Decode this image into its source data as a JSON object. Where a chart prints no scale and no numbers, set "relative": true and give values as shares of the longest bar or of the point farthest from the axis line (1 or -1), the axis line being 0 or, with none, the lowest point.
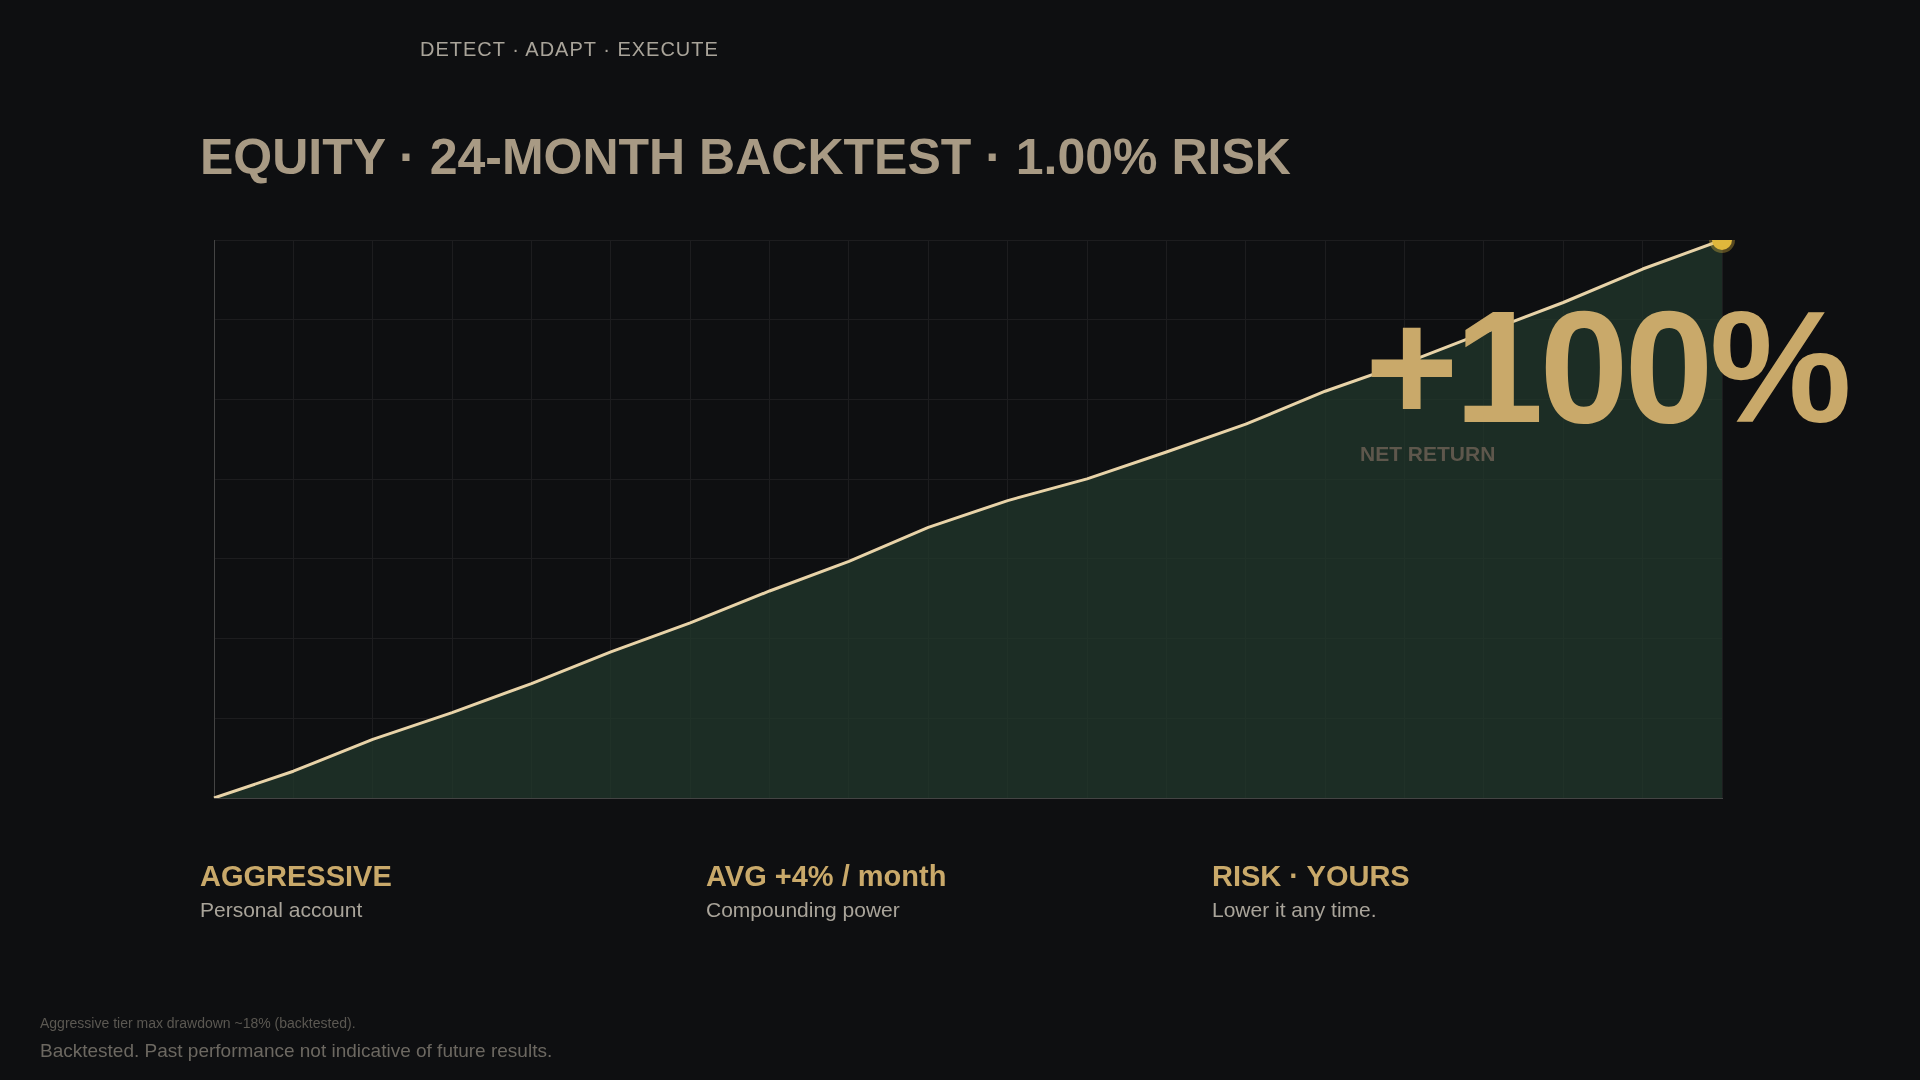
{
  "chart_data": {
    "type": "area",
    "title": "EQUITY · 24-MONTH BACKTEST · 1.00% RISK",
    "relative": true,
    "grid": true,
    "color": "#e8d3a8",
    "categories": [
      null,
      null,
      null,
      null,
      null,
      null,
      null,
      null,
      null,
      null,
      null,
      null,
      null,
      null,
      null,
      null,
      null,
      null,
      null,
      null
    ],
    "values": [
      0,
      0.048,
      0.105,
      0.153,
      0.205,
      0.262,
      0.314,
      0.371,
      0.424,
      0.485,
      0.533,
      0.572,
      0.62,
      0.67,
      0.729,
      0.779,
      0.834,
      0.888,
      0.948,
      1
    ],
    "annotations": [
      "DETECT · ADAPT · EXECUTE",
      "+100%",
      "NET RETURN",
      "AGGRESSIVE",
      "Personal account",
      "AVG  +4% / month",
      "Compounding power",
      "RISK · YOURS",
      "Lower it any time.",
      "Aggressive tier max drawdown ~18% (backtested).",
      "Backtested. Past performance not indicative of future results."
    ]
  }
}
